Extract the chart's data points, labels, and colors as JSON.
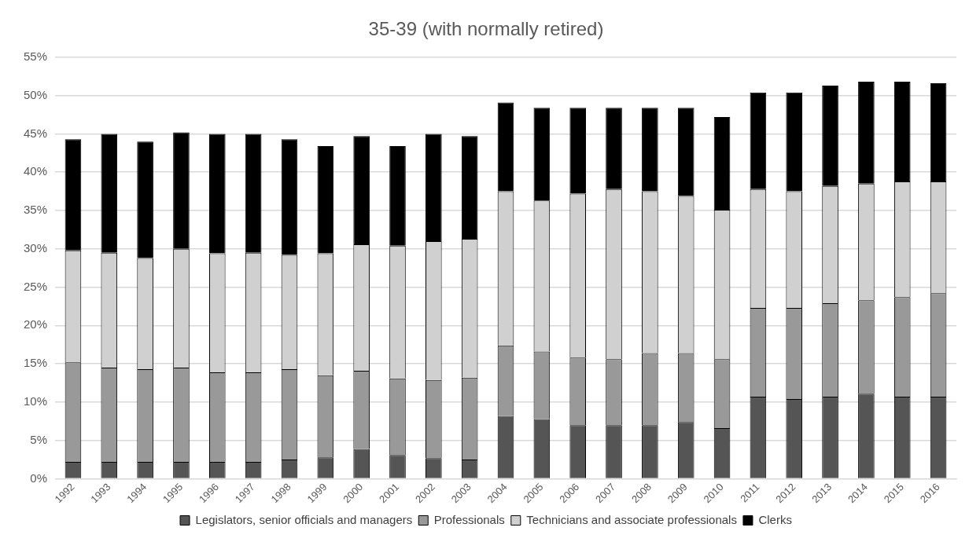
{
  "chart_data": {
    "type": "bar",
    "title": "35-39 (with normally retired)",
    "stacked": true,
    "grid": "y",
    "legend": "bottom",
    "categories": [
      "1992",
      "1993",
      "1994",
      "1995",
      "1996",
      "1997",
      "1998",
      "1999",
      "2000",
      "2001",
      "2002",
      "2003",
      "2004",
      "2005",
      "2006",
      "2007",
      "2008",
      "2009",
      "2010",
      "2011",
      "2012",
      "2013",
      "2014",
      "2015",
      "2016"
    ],
    "ylim": [
      0,
      55
    ],
    "yticks": [
      {
        "value": 0,
        "label": "0%"
      },
      {
        "value": 5,
        "label": "5%"
      },
      {
        "value": 10,
        "label": "10%"
      },
      {
        "value": 15,
        "label": "15%"
      },
      {
        "value": 20,
        "label": "20%"
      },
      {
        "value": 25,
        "label": "25%"
      },
      {
        "value": 30,
        "label": "30%"
      },
      {
        "value": 35,
        "label": "35%"
      },
      {
        "value": 40,
        "label": "40%"
      },
      {
        "value": 45,
        "label": "45%"
      },
      {
        "value": 50,
        "label": "50%"
      },
      {
        "value": 55,
        "label": "55%"
      }
    ],
    "series": [
      {
        "name": "Legislators, senior officials and managers",
        "color": "#555555",
        "values": [
          2.2,
          2.2,
          2.2,
          2.2,
          2.2,
          2.2,
          2.5,
          2.8,
          3.9,
          3.1,
          2.7,
          2.5,
          8.2,
          7.8,
          7.0,
          7.0,
          7.0,
          7.4,
          6.6,
          10.7,
          10.4,
          10.7,
          11.1,
          10.7,
          10.7
        ]
      },
      {
        "name": "Professionals",
        "color": "#999999",
        "values": [
          13.0,
          12.3,
          12.1,
          12.3,
          11.7,
          11.7,
          11.8,
          10.7,
          10.2,
          10.0,
          10.2,
          10.7,
          9.2,
          8.8,
          8.8,
          8.6,
          9.4,
          9.0,
          9.0,
          11.6,
          11.9,
          12.2,
          12.2,
          13.0,
          13.5
        ]
      },
      {
        "name": "Technicians and associate professionals",
        "color": "#d0d0d0",
        "values": [
          14.6,
          15.0,
          14.5,
          15.5,
          15.5,
          15.6,
          14.9,
          15.9,
          16.5,
          17.3,
          18.1,
          18.1,
          20.1,
          19.7,
          21.4,
          22.2,
          21.1,
          20.5,
          19.5,
          15.5,
          15.2,
          15.3,
          15.2,
          15.1,
          14.6
        ]
      },
      {
        "name": "Clerks",
        "color": "#000000",
        "values": [
          14.5,
          15.5,
          15.2,
          15.2,
          15.6,
          15.5,
          15.1,
          14.0,
          14.1,
          13.0,
          14.0,
          13.4,
          11.6,
          12.1,
          11.2,
          10.6,
          10.9,
          11.5,
          12.1,
          12.6,
          12.9,
          13.1,
          13.3,
          13.0,
          12.8
        ]
      }
    ]
  }
}
